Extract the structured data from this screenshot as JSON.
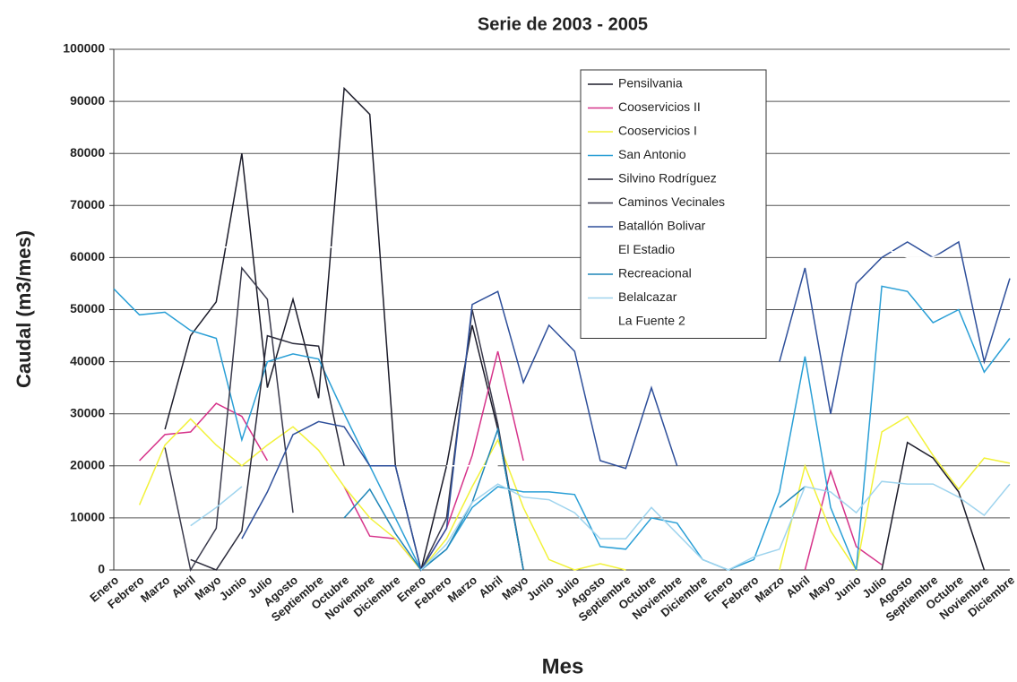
{
  "chart_data": {
    "type": "line",
    "title": "Serie de 2003 - 2005",
    "x_label": "Mes",
    "y_label": "Caudal (m3/mes)",
    "categories": [
      "Enero",
      "Febrero",
      "Marzo",
      "Abril",
      "Mayo",
      "Junio",
      "Julio",
      "Agosto",
      "Septiembre",
      "Octubre",
      "Noviembre",
      "Diciembre",
      "Enero",
      "Febrero",
      "Marzo",
      "Abril",
      "Mayo",
      "Junio",
      "Julio",
      "Agosto",
      "Septiembre",
      "Octubre",
      "Noviembre",
      "Diciembre",
      "Enero",
      "Febrero",
      "Marzo",
      "Abril",
      "Mayo",
      "Junio",
      "Julio",
      "Agosto",
      "Septiembre",
      "Octubre",
      "Noviembre",
      "Diciembre"
    ],
    "ylim": [
      0,
      100000
    ],
    "yticks": [
      0,
      10000,
      20000,
      30000,
      40000,
      50000,
      60000,
      70000,
      80000,
      90000,
      100000
    ],
    "grid": true,
    "series": [
      {
        "name": "Pensilvania",
        "color": "#1c1c2a",
        "values": [
          null,
          null,
          27000,
          45000,
          51500,
          80000,
          35000,
          52000,
          33000,
          92500,
          87500,
          20000,
          0,
          20000,
          47000,
          27000,
          0,
          null,
          null,
          null,
          null,
          null,
          null,
          null,
          null,
          null,
          null,
          null,
          null,
          null,
          0,
          24500,
          21500,
          15000,
          0,
          null
        ]
      },
      {
        "name": "Cooservicios II",
        "color": "#d6338a",
        "values": [
          null,
          21000,
          26000,
          26500,
          32000,
          29500,
          21000,
          null,
          null,
          16000,
          6500,
          6000,
          0,
          8000,
          22000,
          42000,
          21000,
          null,
          null,
          null,
          null,
          null,
          null,
          null,
          null,
          null,
          null,
          0,
          19000,
          4500,
          1000,
          null,
          null,
          null,
          null,
          null
        ]
      },
      {
        "name": "Cooservicios I",
        "color": "#f2f23a",
        "values": [
          null,
          12500,
          24000,
          29000,
          24000,
          20000,
          24000,
          27500,
          23000,
          16000,
          10000,
          6000,
          0,
          6000,
          16000,
          25000,
          12000,
          2000,
          0,
          1200,
          0,
          null,
          null,
          null,
          null,
          null,
          0,
          20000,
          7500,
          0,
          26500,
          29500,
          22000,
          15500,
          21500,
          20500
        ]
      },
      {
        "name": "San Antonio",
        "color": "#2a9fd6",
        "values": [
          54000,
          49000,
          49500,
          46000,
          44500,
          25000,
          40000,
          41500,
          40500,
          30000,
          20000,
          10000,
          0,
          4000,
          12000,
          16000,
          15000,
          15000,
          14500,
          4500,
          4000,
          10000,
          9000,
          2000,
          0,
          2000,
          15000,
          41000,
          12000,
          0,
          54500,
          53500,
          47500,
          50000,
          38000,
          44500
        ]
      },
      {
        "name": "Silvino Rodríguez",
        "color": "#2b2b3b",
        "values": [
          null,
          null,
          null,
          2000,
          0,
          7500,
          45000,
          43500,
          43000,
          20000,
          null,
          null,
          null,
          null,
          null,
          null,
          null,
          null,
          null,
          null,
          null,
          null,
          null,
          null,
          null,
          null,
          null,
          null,
          null,
          null,
          null,
          null,
          null,
          null,
          null,
          null
        ]
      },
      {
        "name": "Caminos Vecinales",
        "color": "#3a3a4c",
        "values": [
          null,
          null,
          23500,
          0,
          8000,
          58000,
          52000,
          11000,
          null,
          null,
          null,
          null,
          0,
          10000,
          50000,
          28000,
          0,
          null,
          null,
          null,
          null,
          null,
          null,
          null,
          null,
          null,
          null,
          null,
          null,
          null,
          null,
          null,
          null,
          null,
          null,
          null
        ]
      },
      {
        "name": "Batallón Bolivar",
        "color": "#2e4f9a",
        "values": [
          null,
          null,
          null,
          null,
          null,
          6000,
          15000,
          26000,
          28500,
          27500,
          20000,
          20000,
          0,
          8000,
          51000,
          53500,
          36000,
          47000,
          42000,
          21000,
          19500,
          35000,
          20000,
          null,
          null,
          null,
          40000,
          58000,
          30000,
          55000,
          60000,
          63000,
          60000,
          63000,
          40000,
          56000
        ]
      },
      {
        "name": "El Estadio",
        "color": "#ffffff",
        "values": [
          null,
          null,
          null,
          null,
          62000,
          62000,
          null,
          null,
          62000,
          62000,
          62000,
          null,
          null,
          null,
          null,
          null,
          null,
          null,
          null,
          null,
          null,
          null,
          null,
          null,
          null,
          null,
          null,
          null,
          null,
          null,
          62000,
          60000,
          60000,
          62000,
          null,
          null
        ]
      },
      {
        "name": "Recreacional",
        "color": "#1f86b8",
        "values": [
          null,
          null,
          null,
          null,
          null,
          null,
          null,
          null,
          null,
          10000,
          15500,
          7000,
          0,
          4000,
          13000,
          27000,
          0,
          null,
          null,
          null,
          null,
          null,
          null,
          null,
          null,
          null,
          12000,
          16000,
          null,
          null,
          null,
          null,
          null,
          null,
          null,
          null
        ]
      },
      {
        "name": "Belalcazar",
        "color": "#9fd4ee",
        "values": [
          null,
          null,
          null,
          8500,
          12000,
          16000,
          null,
          null,
          null,
          null,
          null,
          null,
          0,
          5000,
          13000,
          16500,
          14000,
          13500,
          11000,
          6000,
          6000,
          12000,
          7000,
          2000,
          0,
          2500,
          4000,
          16000,
          15000,
          11000,
          17000,
          16500,
          16500,
          14000,
          10500,
          16500
        ]
      },
      {
        "name": "La Fuente 2",
        "color": "#ffffff",
        "values": [
          null,
          null,
          null,
          null,
          null,
          null,
          null,
          null,
          null,
          null,
          null,
          null,
          null,
          20000,
          20000,
          20000,
          null,
          null,
          null,
          null,
          null,
          null,
          null,
          null,
          null,
          null,
          null,
          null,
          null,
          null,
          null,
          null,
          null,
          null,
          null,
          null
        ]
      }
    ]
  }
}
